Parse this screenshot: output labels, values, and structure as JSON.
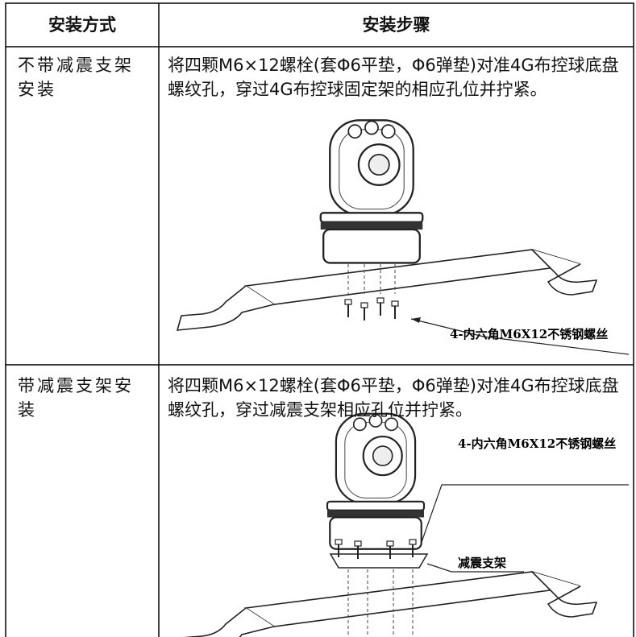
{
  "table": {
    "header": [
      "安装方式",
      "安装步骤"
    ],
    "rows": [
      {
        "method": "不带减震支架安装",
        "step": "将四颗M6×12螺栓(套Φ6平垫，Φ6弹垫)对准4G布控球底盘螺纹孔，穿过4G布控球固定架的相应孔位并拧紧。",
        "callouts": [
          "4-内六角M6X12不锈钢螺丝"
        ]
      },
      {
        "method": "带减震支架安装",
        "step": "将四颗M6×12螺栓(套Φ6平垫，Φ6弹垫)对准4G布控球底盘螺纹孔，穿过减震支架相应孔位并拧紧。",
        "callouts": [
          "4-内六角M6X12不锈钢螺丝",
          "减震支架"
        ]
      }
    ]
  }
}
